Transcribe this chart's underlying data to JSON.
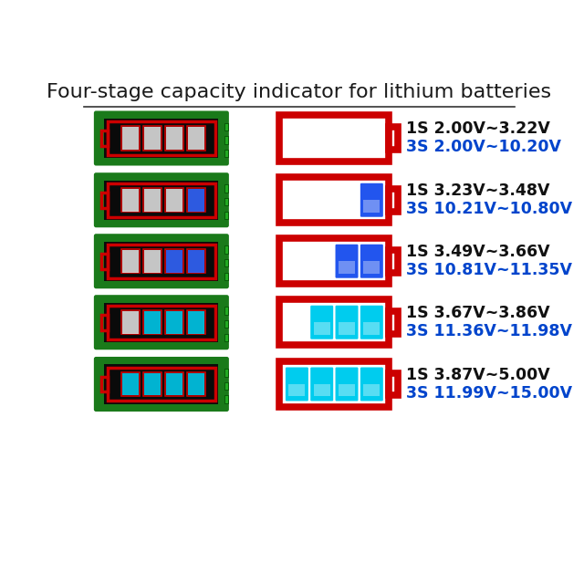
{
  "title": "Four-stage capacity indicator for lithium batteries",
  "title_fontsize": 16,
  "title_color": "#1a1a1a",
  "background_color": "#ffffff",
  "stages": [
    {
      "label_1s": "1S 2.00V~3.22V",
      "label_3s": "3S 2.00V~10.20V",
      "num_bars": 0,
      "pcb_bar_colors": [
        "#e0e0e0",
        "#e0e0e0",
        "#e0e0e0",
        "#e0e0e0"
      ],
      "schematic_bar_colors": []
    },
    {
      "label_1s": "1S 3.23V~3.48V",
      "label_3s": "3S 10.21V~10.80V",
      "num_bars": 1,
      "pcb_bar_colors": [
        "#e0e0e0",
        "#e0e0e0",
        "#e0e0e0",
        "#3366ff"
      ],
      "schematic_bar_colors": [
        "#2255ee"
      ]
    },
    {
      "label_1s": "1S 3.49V~3.66V",
      "label_3s": "3S 10.81V~11.35V",
      "num_bars": 2,
      "pcb_bar_colors": [
        "#e0e0e0",
        "#e0e0e0",
        "#3366ff",
        "#3366ff"
      ],
      "schematic_bar_colors": [
        "#2255ee",
        "#2255ee"
      ]
    },
    {
      "label_1s": "1S 3.67V~3.86V",
      "label_3s": "3S 11.36V~11.98V",
      "num_bars": 3,
      "pcb_bar_colors": [
        "#e0e0e0",
        "#00ccee",
        "#00ccee",
        "#00ccee"
      ],
      "schematic_bar_colors": [
        "#00ccee",
        "#00ccee",
        "#00ccee"
      ]
    },
    {
      "label_1s": "1S 3.87V~5.00V",
      "label_3s": "3S 11.99V~15.00V",
      "num_bars": 4,
      "pcb_bar_colors": [
        "#00ccee",
        "#00ccee",
        "#00ccee",
        "#00ccee"
      ],
      "schematic_bar_colors": [
        "#00ccee",
        "#00ccee",
        "#00ccee",
        "#00ccee"
      ]
    }
  ],
  "red_border_color": "#cc0000",
  "label_1s_color": "#111111",
  "label_3s_color": "#0044cc",
  "label_fontsize": 12.5,
  "line_color": "#333333",
  "pcb_green": "#1a7a1a",
  "pcb_black": "#0a0a0a"
}
